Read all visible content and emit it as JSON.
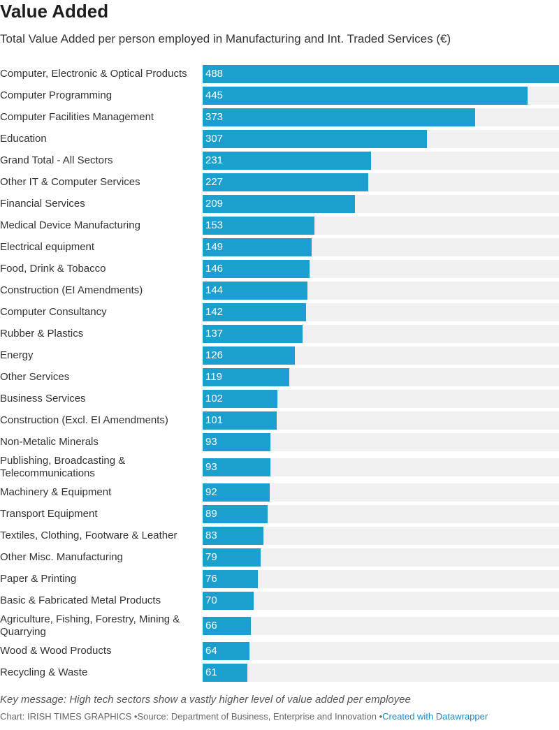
{
  "chart_data": {
    "type": "bar",
    "orientation": "horizontal",
    "title": "Value Added",
    "subtitle": "Total Value Added per person employed in Manufacturing and Int. Traded Services (€)",
    "categories": [
      "Computer, Electronic & Optical Products",
      "Computer Programming",
      "Computer Facilities Management",
      "Education",
      "Grand Total - All Sectors",
      "Other IT & Computer Services",
      "Financial Services",
      "Medical Device Manufacturing",
      "Electrical equipment",
      "Food, Drink & Tobacco",
      "Construction (EI Amendments)",
      "Computer Consultancy",
      "Rubber & Plastics",
      "Energy",
      "Other Services",
      "Business Services",
      "Construction (Excl. EI Amendments)",
      "Non-Metalic Minerals",
      "Publishing, Broadcasting & Telecommunications",
      "Machinery & Equipment",
      "Transport Equipment",
      "Textiles, Clothing, Footware & Leather",
      "Other Misc. Manufacturing",
      "Paper & Printing",
      "Basic & Fabricated Metal Products",
      "Agriculture, Fishing, Forestry, Mining & Quarrying",
      "Wood & Wood Products",
      "Recycling & Waste"
    ],
    "values": [
      488,
      445,
      373,
      307,
      231,
      227,
      209,
      153,
      149,
      146,
      144,
      142,
      137,
      126,
      119,
      102,
      101,
      93,
      93,
      92,
      89,
      83,
      79,
      76,
      70,
      66,
      64,
      61
    ],
    "color": "#1a9fcf",
    "notes": "Key message: High tech sectors show a vastly higher level of value added per employee",
    "footer": {
      "credit": "Chart: IRISH TIMES GRAPHICS",
      "source": "Source: Department of Business, Enterprise and Innovation",
      "link": "Created with Datawrapper"
    }
  }
}
